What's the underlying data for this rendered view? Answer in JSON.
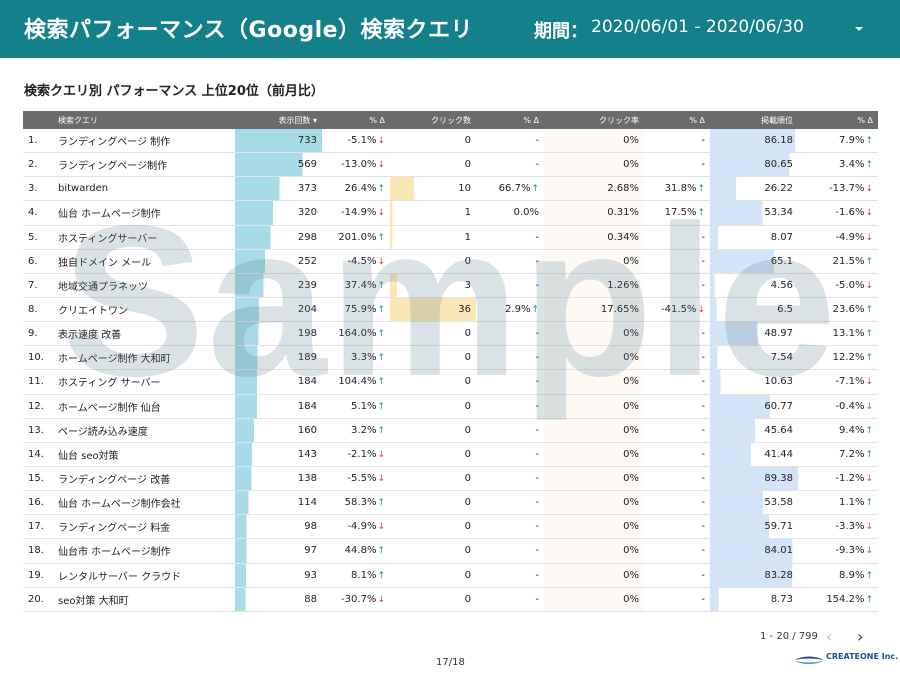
{
  "header": {
    "title": "検索パフォーマンス（Google）検索クエリ",
    "period_label": "期間：",
    "period_value": "2020/06/01 - 2020/06/30"
  },
  "subtitle": "検索クエリ別 パフォーマンス 上位20位（前月比）",
  "table": {
    "columns": [
      "検索クエリ",
      "表示回数 ▾",
      "% Δ",
      "クリック数",
      "% Δ",
      "クリック率",
      "% Δ",
      "掲載順位",
      "% Δ"
    ],
    "rows": [
      {
        "no": "1.",
        "query": "ランディングページ 制作",
        "imp": "733",
        "imp_d": "-5.1%",
        "imp_dir": "dn",
        "clk": "0",
        "clk_d": "-",
        "clk_dir": "",
        "ctr": "0%",
        "ctr_d": "-",
        "ctr_dir": "",
        "pos": "86.18",
        "pos_d": "7.9%",
        "pos_dir": "up"
      },
      {
        "no": "2.",
        "query": "ランディングページ制作",
        "imp": "569",
        "imp_d": "-13.0%",
        "imp_dir": "dn",
        "clk": "0",
        "clk_d": "-",
        "clk_dir": "",
        "ctr": "0%",
        "ctr_d": "-",
        "ctr_dir": "",
        "pos": "80.65",
        "pos_d": "3.4%",
        "pos_dir": "up"
      },
      {
        "no": "3.",
        "query": "bitwarden",
        "imp": "373",
        "imp_d": "26.4%",
        "imp_dir": "up",
        "clk": "10",
        "clk_d": "66.7%",
        "clk_dir": "up",
        "ctr": "2.68%",
        "ctr_d": "31.8%",
        "ctr_dir": "up",
        "pos": "26.22",
        "pos_d": "-13.7%",
        "pos_dir": "dn"
      },
      {
        "no": "4.",
        "query": "仙台 ホームページ制作",
        "imp": "320",
        "imp_d": "-14.9%",
        "imp_dir": "dn",
        "clk": "1",
        "clk_d": "0.0%",
        "clk_dir": "",
        "ctr": "0.31%",
        "ctr_d": "17.5%",
        "ctr_dir": "up",
        "pos": "53.34",
        "pos_d": "-1.6%",
        "pos_dir": "dn"
      },
      {
        "no": "5.",
        "query": "ホスティングサーバー",
        "imp": "298",
        "imp_d": "201.0%",
        "imp_dir": "up",
        "clk": "1",
        "clk_d": "-",
        "clk_dir": "",
        "ctr": "0.34%",
        "ctr_d": "-",
        "ctr_dir": "",
        "pos": "8.07",
        "pos_d": "-4.9%",
        "pos_dir": "dn"
      },
      {
        "no": "6.",
        "query": "独自ドメイン メール",
        "imp": "252",
        "imp_d": "-4.5%",
        "imp_dir": "dn",
        "clk": "0",
        "clk_d": "-",
        "clk_dir": "",
        "ctr": "0%",
        "ctr_d": "-",
        "ctr_dir": "",
        "pos": "65.1",
        "pos_d": "21.5%",
        "pos_dir": "up"
      },
      {
        "no": "7.",
        "query": "地域交通プラネッツ",
        "imp": "239",
        "imp_d": "37.4%",
        "imp_dir": "up",
        "clk": "3",
        "clk_d": "-",
        "clk_dir": "",
        "ctr": "1.26%",
        "ctr_d": "-",
        "ctr_dir": "",
        "pos": "4.56",
        "pos_d": "-5.0%",
        "pos_dir": "dn"
      },
      {
        "no": "8.",
        "query": "クリエイトワン",
        "imp": "204",
        "imp_d": "75.9%",
        "imp_dir": "up",
        "clk": "36",
        "clk_d": "2.9%",
        "clk_dir": "up",
        "ctr": "17.65%",
        "ctr_d": "-41.5%",
        "ctr_dir": "dn",
        "pos": "6.5",
        "pos_d": "23.6%",
        "pos_dir": "up"
      },
      {
        "no": "9.",
        "query": "表示速度 改善",
        "imp": "198",
        "imp_d": "164.0%",
        "imp_dir": "up",
        "clk": "0",
        "clk_d": "-",
        "clk_dir": "",
        "ctr": "0%",
        "ctr_d": "-",
        "ctr_dir": "",
        "pos": "48.97",
        "pos_d": "13.1%",
        "pos_dir": "up"
      },
      {
        "no": "10.",
        "query": "ホームページ制作 大和町",
        "imp": "189",
        "imp_d": "3.3%",
        "imp_dir": "up",
        "clk": "0",
        "clk_d": "-",
        "clk_dir": "",
        "ctr": "0%",
        "ctr_d": "-",
        "ctr_dir": "",
        "pos": "7.54",
        "pos_d": "12.2%",
        "pos_dir": "up"
      },
      {
        "no": "11.",
        "query": "ホスティング サーバー",
        "imp": "184",
        "imp_d": "104.4%",
        "imp_dir": "up",
        "clk": "0",
        "clk_d": "-",
        "clk_dir": "",
        "ctr": "0%",
        "ctr_d": "-",
        "ctr_dir": "",
        "pos": "10.63",
        "pos_d": "-7.1%",
        "pos_dir": "dn"
      },
      {
        "no": "12.",
        "query": "ホームページ制作 仙台",
        "imp": "184",
        "imp_d": "5.1%",
        "imp_dir": "up",
        "clk": "0",
        "clk_d": "-",
        "clk_dir": "",
        "ctr": "0%",
        "ctr_d": "-",
        "ctr_dir": "",
        "pos": "60.77",
        "pos_d": "-0.4%",
        "pos_dir": "dn"
      },
      {
        "no": "13.",
        "query": "ページ読み込み速度",
        "imp": "160",
        "imp_d": "3.2%",
        "imp_dir": "up",
        "clk": "0",
        "clk_d": "-",
        "clk_dir": "",
        "ctr": "0%",
        "ctr_d": "-",
        "ctr_dir": "",
        "pos": "45.64",
        "pos_d": "9.4%",
        "pos_dir": "up"
      },
      {
        "no": "14.",
        "query": "仙台 seo対策",
        "imp": "143",
        "imp_d": "-2.1%",
        "imp_dir": "dn",
        "clk": "0",
        "clk_d": "-",
        "clk_dir": "",
        "ctr": "0%",
        "ctr_d": "-",
        "ctr_dir": "",
        "pos": "41.44",
        "pos_d": "7.2%",
        "pos_dir": "up"
      },
      {
        "no": "15.",
        "query": "ランディングページ 改善",
        "imp": "138",
        "imp_d": "-5.5%",
        "imp_dir": "dn",
        "clk": "0",
        "clk_d": "-",
        "clk_dir": "",
        "ctr": "0%",
        "ctr_d": "-",
        "ctr_dir": "",
        "pos": "89.38",
        "pos_d": "-1.2%",
        "pos_dir": "dn"
      },
      {
        "no": "16.",
        "query": "仙台 ホームページ制作会社",
        "imp": "114",
        "imp_d": "58.3%",
        "imp_dir": "up",
        "clk": "0",
        "clk_d": "-",
        "clk_dir": "",
        "ctr": "0%",
        "ctr_d": "-",
        "ctr_dir": "",
        "pos": "53.58",
        "pos_d": "1.1%",
        "pos_dir": "up"
      },
      {
        "no": "17.",
        "query": "ランディングページ 料金",
        "imp": "98",
        "imp_d": "-4.9%",
        "imp_dir": "dn",
        "clk": "0",
        "clk_d": "-",
        "clk_dir": "",
        "ctr": "0%",
        "ctr_d": "-",
        "ctr_dir": "",
        "pos": "59.71",
        "pos_d": "-3.3%",
        "pos_dir": "dn"
      },
      {
        "no": "18.",
        "query": "仙台市 ホームページ制作",
        "imp": "97",
        "imp_d": "44.8%",
        "imp_dir": "up",
        "clk": "0",
        "clk_d": "-",
        "clk_dir": "",
        "ctr": "0%",
        "ctr_d": "-",
        "ctr_dir": "",
        "pos": "84.01",
        "pos_d": "-9.3%",
        "pos_dir": "dn"
      },
      {
        "no": "19.",
        "query": "レンタルサーバー クラウド",
        "imp": "93",
        "imp_d": "8.1%",
        "imp_dir": "up",
        "clk": "0",
        "clk_d": "-",
        "clk_dir": "",
        "ctr": "0%",
        "ctr_d": "-",
        "ctr_dir": "",
        "pos": "83.28",
        "pos_d": "8.9%",
        "pos_dir": "up"
      },
      {
        "no": "20.",
        "query": "seo対策 大和町",
        "imp": "88",
        "imp_d": "-30.7%",
        "imp_dir": "dn",
        "clk": "0",
        "clk_d": "-",
        "clk_dir": "",
        "ctr": "0%",
        "ctr_d": "-",
        "ctr_dir": "",
        "pos": "8.73",
        "pos_d": "154.2%",
        "pos_dir": "up"
      }
    ]
  },
  "watermark": "Sample",
  "pagination": {
    "range": "1 - 20 / 799"
  },
  "footer": {
    "page": "17/18",
    "brand": "CREATEONE Inc."
  },
  "colors": {
    "header_bg": "#13808a",
    "up": "#1a8a8a",
    "down": "#e53935",
    "impression_bar": "#a7dbe5",
    "click_bar": "#fbe7b4",
    "position_bar": "#d3e4f6"
  }
}
